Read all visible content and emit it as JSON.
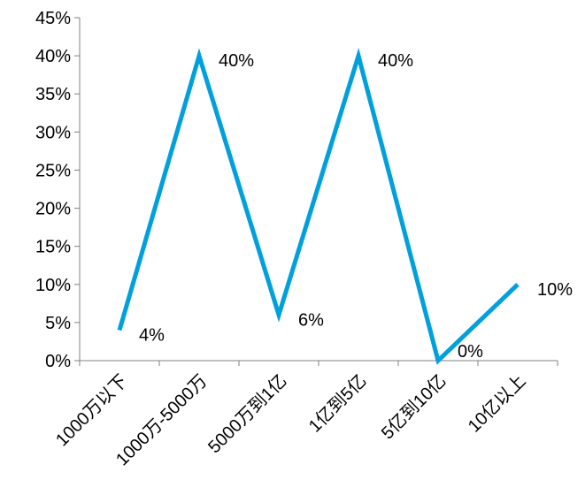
{
  "chart_data": {
    "type": "line",
    "categories": [
      "1000万以下",
      "1000万-5000万",
      "5000万到1亿",
      "1亿到5亿",
      "5亿到10亿",
      "10亿以上"
    ],
    "series": [
      {
        "values": [
          4,
          40,
          6,
          40,
          0,
          10
        ],
        "color": "#00A0DC",
        "data_labels": [
          "4%",
          "40%",
          "6%",
          "40%",
          "0%",
          "10%"
        ]
      }
    ],
    "ylim": [
      0,
      45
    ],
    "y_ticks": [
      0,
      5,
      10,
      15,
      20,
      25,
      30,
      35,
      40,
      45
    ],
    "y_tick_labels": [
      "0%",
      "5%",
      "10%",
      "15%",
      "20%",
      "25%",
      "30%",
      "35%",
      "40%",
      "45%"
    ],
    "grid": false,
    "legend": "none"
  }
}
